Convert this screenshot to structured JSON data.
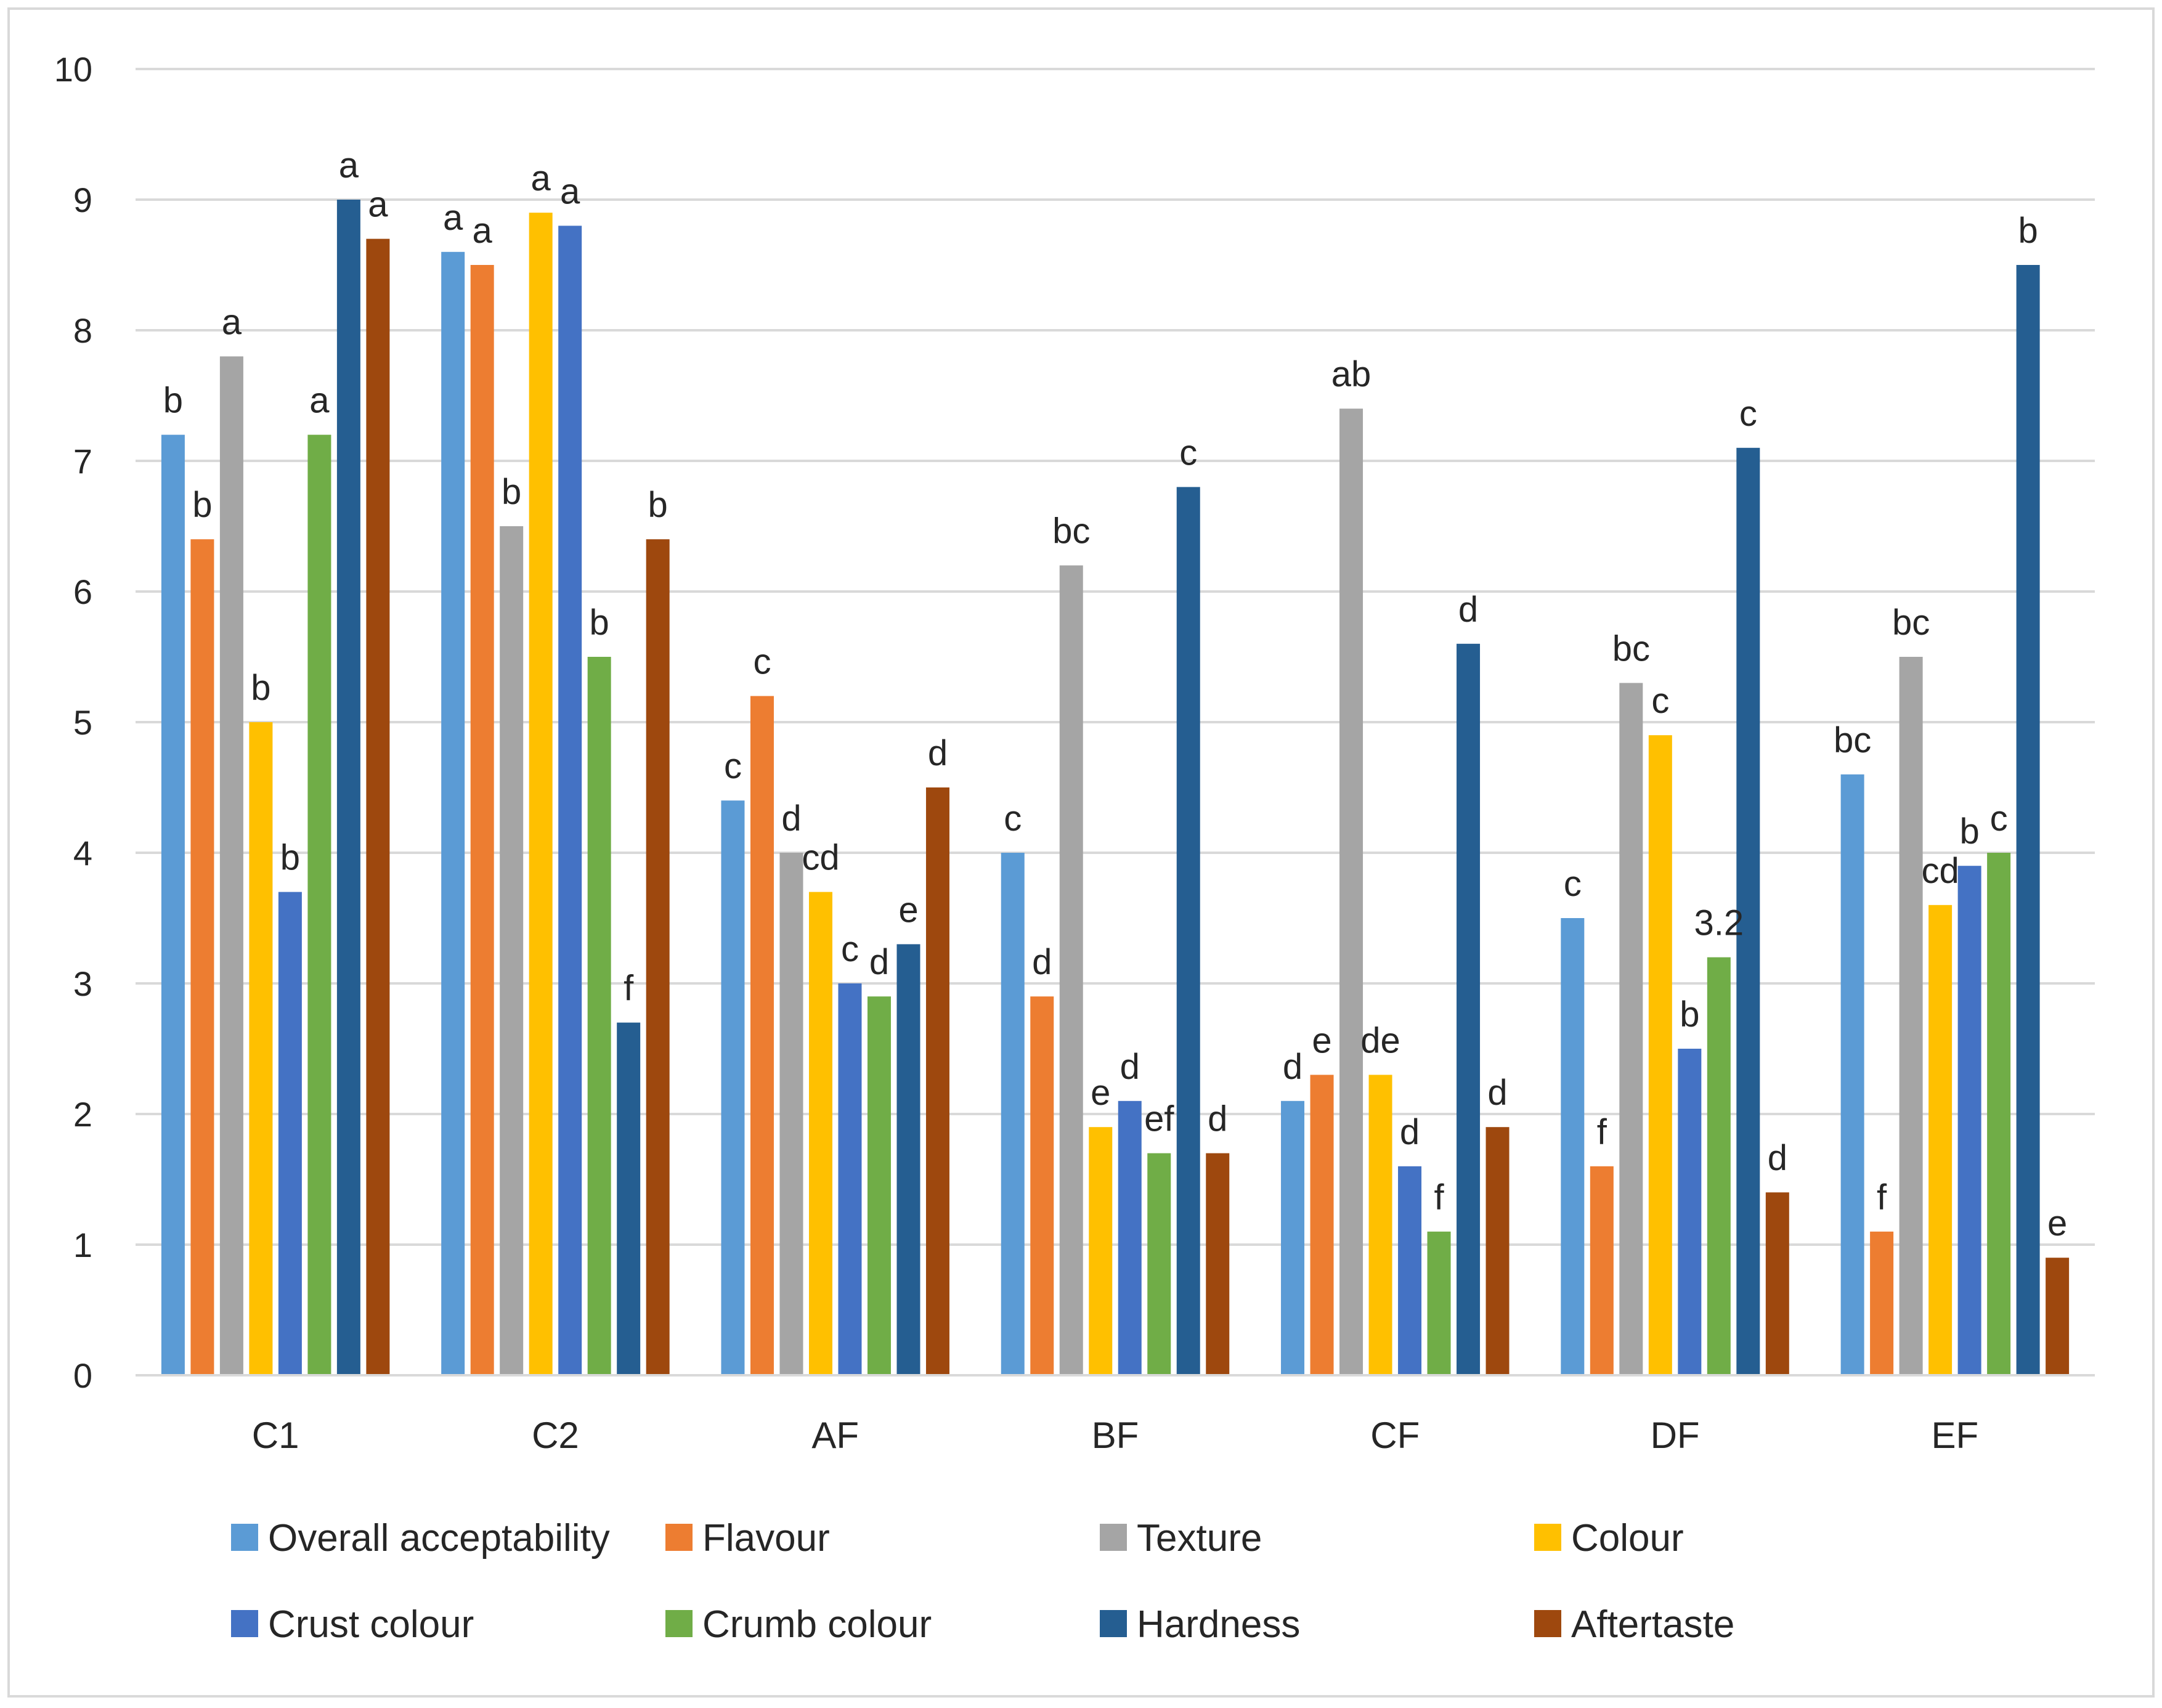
{
  "chart_data": {
    "type": "bar",
    "title": "",
    "xlabel": "",
    "ylabel": "",
    "ylim": [
      0,
      10
    ],
    "yticks": [
      "0",
      "1",
      "2",
      "3",
      "4",
      "5",
      "6",
      "7",
      "8",
      "9",
      "10"
    ],
    "grid": true,
    "legend_position": "bottom",
    "categories": [
      "C1",
      "C2",
      "AF",
      "BF",
      "CF",
      "DF",
      "EF"
    ],
    "series": [
      {
        "name": "Overall acceptability",
        "color": "#5B9BD5",
        "values": [
          7.2,
          8.6,
          4.4,
          4.0,
          2.1,
          3.5,
          4.6
        ],
        "labels": [
          "b",
          "a",
          "c",
          "c",
          "d",
          "c",
          "bc"
        ]
      },
      {
        "name": "Flavour",
        "color": "#ED7D31",
        "values": [
          6.4,
          8.5,
          5.2,
          2.9,
          2.3,
          1.6,
          1.1
        ],
        "labels": [
          "b",
          "a",
          "c",
          "d",
          "e",
          "f",
          "f"
        ]
      },
      {
        "name": "Texture",
        "color": "#A5A5A5",
        "values": [
          7.8,
          6.5,
          4.0,
          6.2,
          7.4,
          5.3,
          5.5
        ],
        "labels": [
          "a",
          "b",
          "d",
          "bc",
          "ab",
          "bc",
          "bc"
        ]
      },
      {
        "name": "Colour",
        "color": "#FFC000",
        "values": [
          5.0,
          8.9,
          3.7,
          1.9,
          2.3,
          4.9,
          3.6
        ],
        "labels": [
          "b",
          "a",
          "cd",
          "e",
          "de",
          "c",
          "cd"
        ]
      },
      {
        "name": "Crust colour",
        "color": "#4472C4",
        "values": [
          3.7,
          8.8,
          3.0,
          2.1,
          1.6,
          2.5,
          3.9
        ],
        "labels": [
          "b",
          "a",
          "c",
          "d",
          "d",
          "b",
          "b"
        ]
      },
      {
        "name": "Crumb colour",
        "color": "#70AD47",
        "values": [
          7.2,
          5.5,
          2.9,
          1.7,
          1.1,
          3.2,
          4.0
        ],
        "labels": [
          "a",
          "b",
          "d",
          "ef",
          "f",
          "3.2",
          "c"
        ]
      },
      {
        "name": "Hardness",
        "color": "#255E91",
        "values": [
          9.0,
          2.7,
          3.3,
          6.8,
          5.6,
          7.1,
          8.5
        ],
        "labels": [
          "a",
          "f",
          "e",
          "c",
          "d",
          "c",
          "b"
        ]
      },
      {
        "name": "Aftertaste",
        "color": "#9E480E",
        "values": [
          8.7,
          6.4,
          4.5,
          1.7,
          1.9,
          1.4,
          0.9
        ],
        "labels": [
          "a",
          "b",
          "d",
          "d",
          "d",
          "d",
          "e"
        ]
      }
    ]
  }
}
